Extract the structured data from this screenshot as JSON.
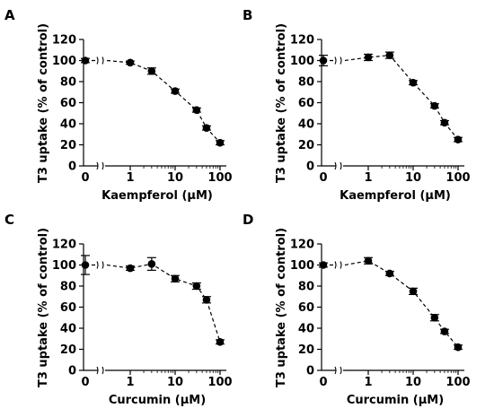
{
  "chart_data": [
    {
      "panel": "A",
      "type": "scatter",
      "xlabel": "Kaempferol (μM)",
      "ylabel": "T3 uptake (% of control)",
      "xscale": "log with axis break at 0",
      "ylim": [
        0,
        120
      ],
      "yticks": [
        "0",
        "20",
        "40",
        "60",
        "80",
        "100",
        "120"
      ],
      "xticks": [
        "0",
        "1",
        "10",
        "100"
      ],
      "x": [
        0,
        1,
        3,
        10,
        30,
        50,
        100
      ],
      "y": [
        100,
        98,
        90,
        71,
        53,
        36,
        22
      ],
      "err": [
        2,
        1.5,
        3,
        2,
        2,
        2,
        2
      ],
      "fit_line": "dashed"
    },
    {
      "panel": "B",
      "type": "scatter",
      "xlabel": "Kaempferol (μM)",
      "ylabel": "T3 uptake (% of control)",
      "xscale": "log with axis break at 0",
      "ylim": [
        0,
        120
      ],
      "yticks": [
        "0",
        "20",
        "40",
        "60",
        "80",
        "100",
        "120"
      ],
      "xticks": [
        "0",
        "1",
        "10",
        "100"
      ],
      "x": [
        0,
        1,
        3,
        10,
        30,
        50,
        100
      ],
      "y": [
        100,
        103,
        105,
        79,
        57,
        41,
        25
      ],
      "err": [
        5,
        3,
        3,
        2,
        2,
        2,
        2
      ],
      "fit_line": "dashed"
    },
    {
      "panel": "C",
      "type": "scatter",
      "xlabel": "Curcumin (μM)",
      "ylabel": "T3 uptake (% of control)",
      "xscale": "log with axis break at 0",
      "ylim": [
        0,
        120
      ],
      "yticks": [
        "0",
        "20",
        "40",
        "60",
        "80",
        "100",
        "120"
      ],
      "xticks": [
        "0",
        "1",
        "10",
        "100"
      ],
      "x": [
        0,
        1,
        3,
        10,
        30,
        50,
        100
      ],
      "y": [
        100,
        97,
        101,
        87,
        80,
        67,
        27
      ],
      "err": [
        9,
        2,
        6,
        3,
        3,
        3,
        2
      ],
      "fit_line": "dashed"
    },
    {
      "panel": "D",
      "type": "scatter",
      "xlabel": "Curcumin (μM)",
      "ylabel": "T3 uptake (% of control)",
      "xscale": "log with axis break at 0",
      "ylim": [
        0,
        120
      ],
      "yticks": [
        "0",
        "20",
        "40",
        "60",
        "80",
        "100",
        "120"
      ],
      "xticks": [
        "0",
        "1",
        "10",
        "100"
      ],
      "x": [
        0,
        1,
        3,
        10,
        30,
        50,
        100
      ],
      "y": [
        100,
        104,
        92,
        75,
        50,
        37,
        22
      ],
      "err": [
        2,
        3,
        2,
        3,
        3,
        2,
        2
      ],
      "fit_line": "dashed"
    }
  ]
}
